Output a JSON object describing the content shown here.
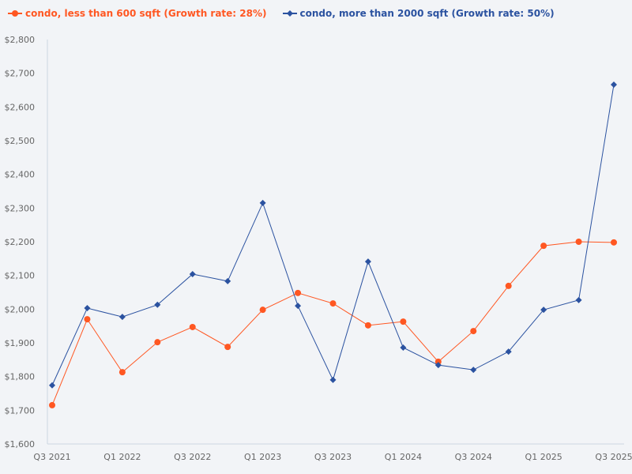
{
  "chart_data": {
    "type": "line",
    "title": "",
    "xlabel": "",
    "ylabel": "",
    "ylim": [
      1600,
      2800
    ],
    "yticks": [
      "$1,600",
      "$1,700",
      "$1,800",
      "$1,900",
      "$2,000",
      "$2,100",
      "$2,200",
      "$2,300",
      "$2,400",
      "$2,500",
      "$2,600",
      "$2,700",
      "$2,800"
    ],
    "x": [
      "Q3 2021",
      "Q4 2021",
      "Q1 2022",
      "Q2 2022",
      "Q3 2022",
      "Q4 2022",
      "Q1 2023",
      "Q2 2023",
      "Q3 2023",
      "Q4 2023",
      "Q1 2024",
      "Q2 2024",
      "Q3 2024",
      "Q4 2024",
      "Q1 2025",
      "Q2 2025",
      "Q3 2025"
    ],
    "xtick_labels": [
      "Q3 2021",
      "Q1 2022",
      "Q3 2022",
      "Q1 2023",
      "Q3 2023",
      "Q1 2024",
      "Q3 2024",
      "Q1 2025",
      "Q3 2025"
    ],
    "grid": false,
    "legend_position": "top-left",
    "series": [
      {
        "name": "condo, less than 600 sqft (Growth rate: 28%)",
        "color": "#ff5722",
        "marker": "circle",
        "values": [
          1715,
          1970,
          1813,
          1902,
          1947,
          1888,
          1998,
          2048,
          2017,
          1952,
          1963,
          1844,
          1935,
          2069,
          2188,
          2200,
          2198
        ]
      },
      {
        "name": "condo, more than 2000 sqft (Growth rate: 50%)",
        "color": "#2b52a0",
        "marker": "diamond",
        "values": [
          1774,
          2003,
          1977,
          2013,
          2104,
          2083,
          2315,
          2010,
          1790,
          2141,
          1886,
          1834,
          1820,
          1874,
          1998,
          2027,
          2666
        ]
      }
    ]
  }
}
